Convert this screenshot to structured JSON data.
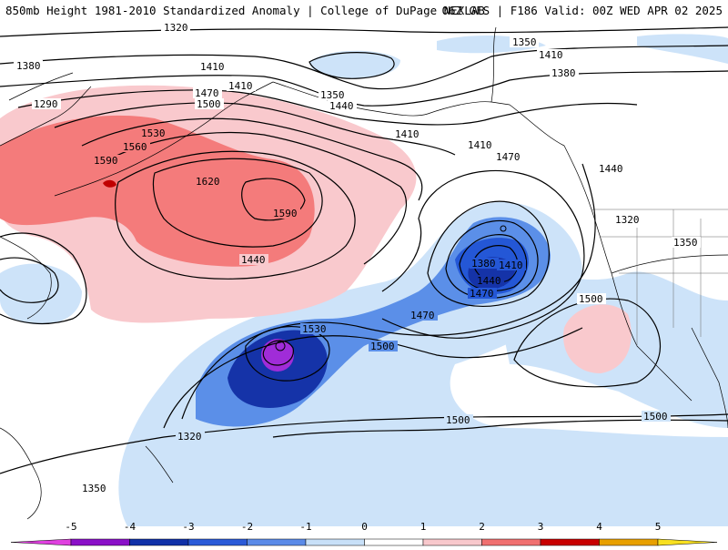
{
  "header": {
    "title_left": "850mb Height 1981-2010 Standardized Anomaly | College of DuPage NEXLAB",
    "title_right": "06Z GFS | F186 Valid: 00Z WED APR 02 2025"
  },
  "contour_labels": [
    "1320",
    "1350",
    "1380",
    "1410",
    "1290",
    "1350",
    "1440",
    "1470",
    "1500",
    "1530",
    "1560",
    "1590",
    "1620",
    "1590",
    "1440",
    "1410",
    "1410",
    "1410",
    "1470",
    "1440",
    "1320",
    "1350",
    "1380",
    "1410",
    "1440",
    "1470",
    "1470",
    "1530",
    "1500",
    "1500",
    "1500",
    "1500",
    "1320",
    "1350",
    "1380",
    "1410"
  ],
  "colorbar": {
    "ticks": [
      "-5",
      "-4",
      "-3",
      "-2",
      "-1",
      "0",
      "1",
      "2",
      "3",
      "4",
      "5"
    ],
    "colors": [
      "#e040e0",
      "#8a10c8",
      "#1030a8",
      "#2a5ad8",
      "#5a8ae8",
      "#c8e0f8",
      "#ffffff",
      "#f8c8cc",
      "#f07070",
      "#c80000",
      "#e8a000",
      "#f8e020"
    ]
  },
  "colors": {
    "positive_anomaly_light": "#f9c9cd",
    "positive_anomaly": "#f47b7b",
    "positive_anomaly_strong": "#c00000",
    "negative_anomaly_light": "#cde3f9",
    "negative_anomaly": "#5b8fe8",
    "negative_anomaly_strong": "#2457d6",
    "negative_anomaly_stronger": "#1533a8",
    "negative_anomaly_extreme": "#a02cd8"
  }
}
